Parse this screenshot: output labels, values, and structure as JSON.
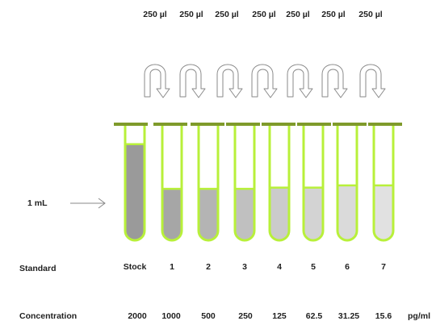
{
  "transfer_volumes": [
    "250 µl",
    "250 µl",
    "250 µl",
    "250 µl",
    "250 µl",
    "250 µl",
    "250 µl"
  ],
  "fill_label": "1 mL",
  "standard": {
    "label": "Standard",
    "tubes": [
      "Stock",
      "1",
      "2",
      "3",
      "4",
      "5",
      "6",
      "7"
    ]
  },
  "concentration": {
    "label": "Concentration",
    "values": [
      "2000",
      "1000",
      "500",
      "250",
      "125",
      "62.5",
      "31.25",
      "15.6"
    ],
    "unit": "pg/ml"
  },
  "colors": {
    "tube_outline": "#b8f03a",
    "rim_bar": "#7f9a2b",
    "stock_liquid": "#9a9a9a",
    "arrow": "#8a8a8a"
  },
  "tube_liquid_shades": [
    "#9a9a9a",
    "#a6a6a6",
    "#b4b4b4",
    "#c0c0c0",
    "#cbcbcb",
    "#d3d3d3",
    "#dadada",
    "#e1e1e1"
  ],
  "tube_fill_fraction": [
    0.84,
    0.45,
    0.45,
    0.45,
    0.46,
    0.46,
    0.48,
    0.48
  ],
  "icons": {
    "transfer": "curved-arrow-icon",
    "pointer": "right-arrow-icon"
  }
}
